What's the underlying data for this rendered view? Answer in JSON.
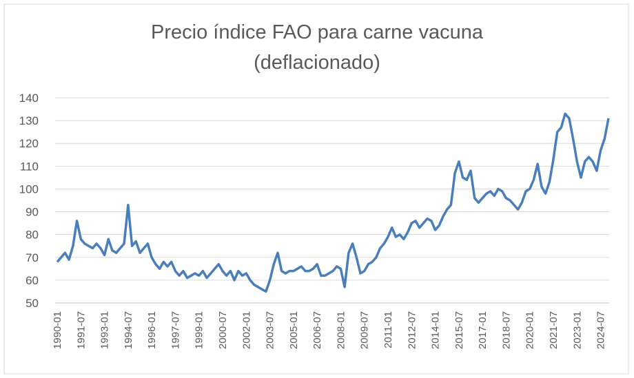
{
  "chart_data": {
    "type": "line",
    "title": [
      "Precio índice FAO para carne vacuna",
      "(deflacionado)"
    ],
    "categories": [
      "1990-01",
      null,
      null,
      null,
      null,
      null,
      "1991-07",
      null,
      null,
      null,
      null,
      null,
      "1993-01",
      null,
      null,
      null,
      null,
      null,
      "1994-07",
      null,
      null,
      null,
      null,
      null,
      "1996-01",
      null,
      null,
      null,
      null,
      null,
      "1997-07",
      null,
      null,
      null,
      null,
      null,
      "1999-01",
      null,
      null,
      null,
      null,
      null,
      "2000-07",
      null,
      null,
      null,
      null,
      null,
      "2002-01",
      null,
      null,
      null,
      null,
      null,
      "2003-07",
      null,
      null,
      null,
      null,
      null,
      "2005-01",
      null,
      null,
      null,
      null,
      null,
      "2006-07",
      null,
      null,
      null,
      null,
      null,
      "2008-01",
      null,
      null,
      null,
      null,
      null,
      "2009-07",
      null,
      null,
      null,
      null,
      null,
      "2011-01",
      null,
      null,
      null,
      null,
      null,
      "2012-07",
      null,
      null,
      null,
      null,
      null,
      "2014-01",
      null,
      null,
      null,
      null,
      null,
      "2015-07",
      null,
      null,
      null,
      null,
      null,
      "2017-01",
      null,
      null,
      null,
      null,
      null,
      "2018-07",
      null,
      null,
      null,
      null,
      null,
      "2020-01",
      null,
      null,
      null,
      null,
      null,
      "2021-07",
      null,
      null,
      null,
      null,
      null,
      "2023-01",
      null,
      null,
      null,
      null,
      null,
      "2024-07",
      null,
      null
    ],
    "series": [
      {
        "name": "Precio índice FAO para carne vacuna (deflacionado)",
        "color": "#4a7ebb",
        "values": [
          68,
          70,
          72,
          69,
          75,
          86,
          78,
          76,
          75,
          74,
          76,
          74,
          71,
          78,
          73,
          72,
          74,
          76,
          93,
          75,
          77,
          72,
          74,
          76,
          70,
          67,
          65,
          68,
          66,
          68,
          64,
          62,
          64,
          61,
          62,
          63,
          62,
          64,
          61,
          63,
          65,
          67,
          64,
          62,
          64,
          60,
          64,
          62,
          63,
          60,
          58,
          57,
          56,
          55,
          60,
          67,
          72,
          64,
          63,
          64,
          64,
          65,
          66,
          64,
          64,
          65,
          67,
          62,
          62,
          63,
          64,
          66,
          65,
          57,
          72,
          76,
          70,
          63,
          64,
          67,
          68,
          70,
          74,
          76,
          79,
          83,
          79,
          80,
          78,
          81,
          85,
          86,
          83,
          85,
          87,
          86,
          82,
          84,
          88,
          91,
          93,
          107,
          112,
          105,
          104,
          108,
          96,
          94,
          96,
          98,
          99,
          97,
          100,
          99,
          96,
          95,
          93,
          91,
          94,
          99,
          100,
          104,
          111,
          101,
          98,
          103,
          113,
          125,
          127,
          133,
          131,
          122,
          112,
          105,
          112,
          114,
          112,
          108,
          117,
          122,
          131
        ]
      }
    ],
    "ylim": [
      50,
      140
    ],
    "yticks": [
      50,
      60,
      70,
      80,
      90,
      100,
      110,
      120,
      130,
      140
    ],
    "grid": true
  }
}
